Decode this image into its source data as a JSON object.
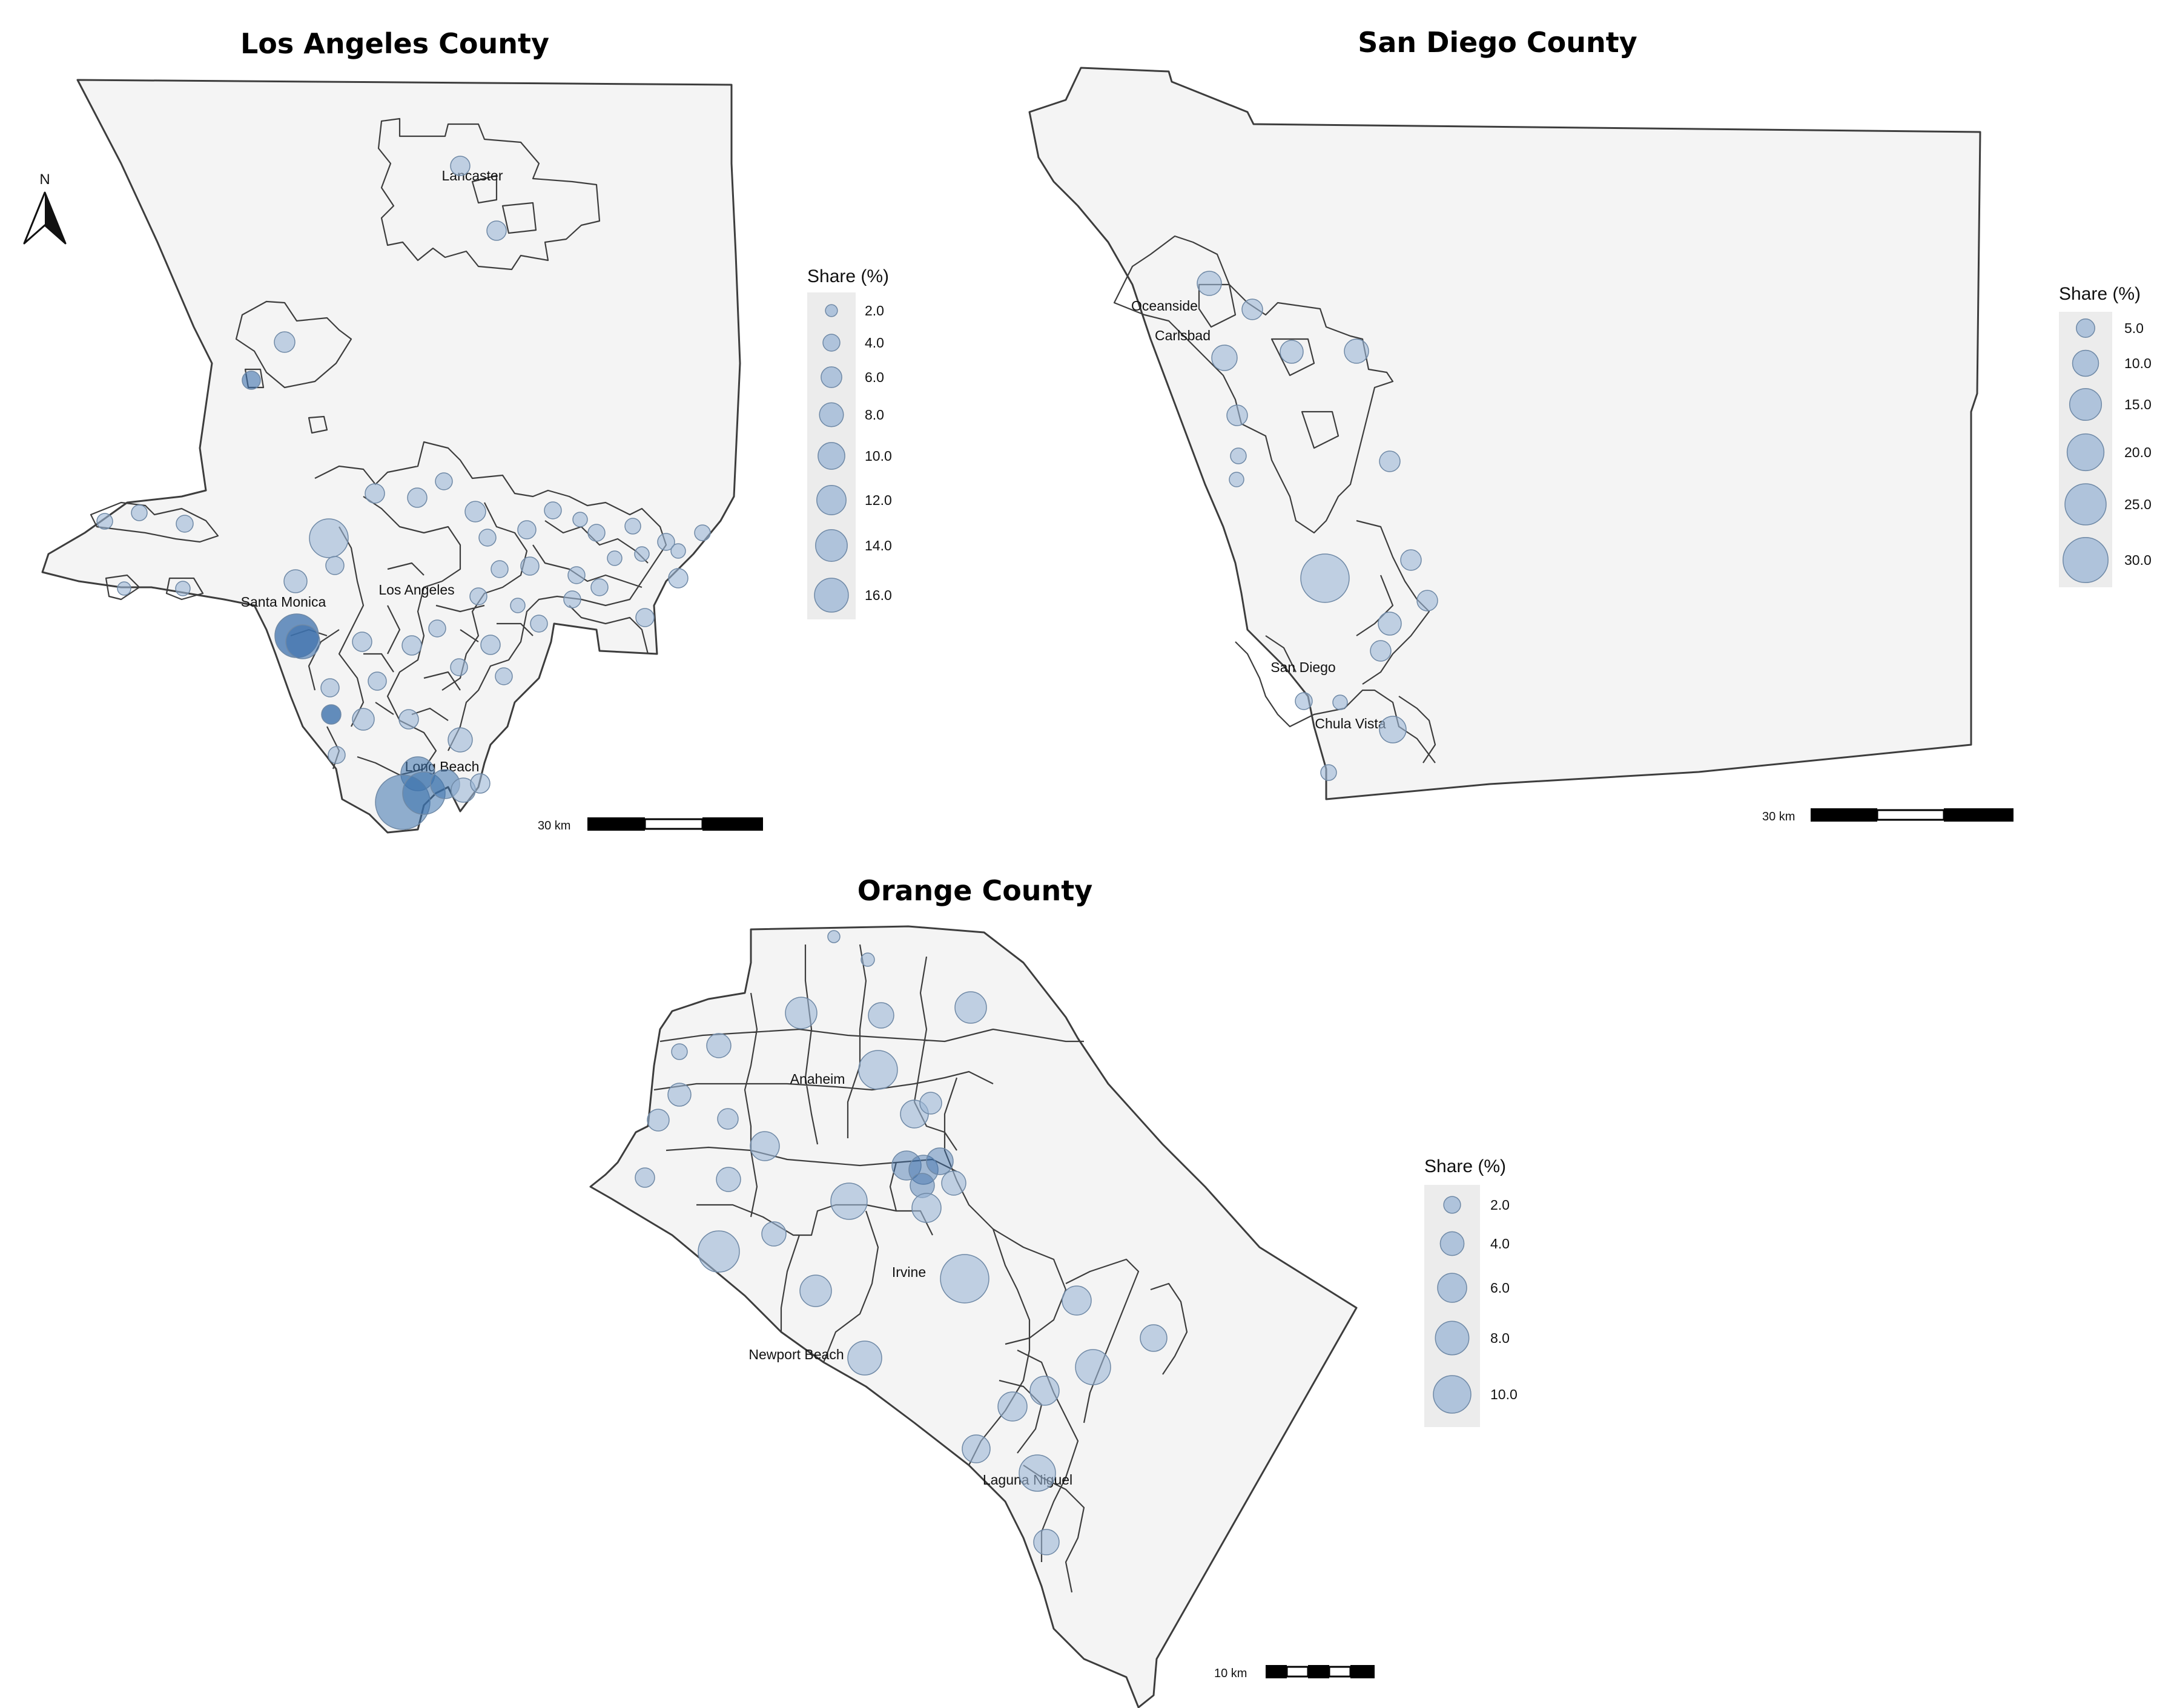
{
  "colors": {
    "bubble_fill": "#9bb6d6",
    "bubble_dark": "#3d72ad",
    "land": "#f4f4f4",
    "border": "#3d3d3d",
    "legend_bg": "#ececec"
  },
  "north_arrow": {
    "label": "N",
    "icon": "north-arrow-icon"
  },
  "maps": [
    {
      "id": "la",
      "title": "Los Angeles County",
      "legend": {
        "title": "Share (%)",
        "values": [
          "2.0",
          "4.0",
          "6.0",
          "8.0",
          "10.0",
          "12.0",
          "14.0",
          "16.0"
        ]
      },
      "scalebar": {
        "label": "30 km",
        "segments": 3
      },
      "cities": [
        "Lancaster",
        "Santa Monica",
        "Los Angeles",
        "Long Beach"
      ]
    },
    {
      "id": "sd",
      "title": "San Diego County",
      "legend": {
        "title": "Share (%)",
        "values": [
          "5.0",
          "10.0",
          "15.0",
          "20.0",
          "25.0",
          "30.0"
        ]
      },
      "scalebar": {
        "label": "30 km",
        "segments": 3
      },
      "cities": [
        "Oceanside",
        "Carlsbad",
        "San Diego",
        "Chula Vista"
      ]
    },
    {
      "id": "oc",
      "title": "Orange County",
      "legend": {
        "title": "Share (%)",
        "values": [
          "2.0",
          "4.0",
          "6.0",
          "8.0",
          "10.0"
        ]
      },
      "scalebar": {
        "label": "10 km",
        "segments": 4
      },
      "cities": [
        "Anaheim",
        "Irvine",
        "Newport Beach",
        "Laguna Niguel"
      ]
    }
  ]
}
